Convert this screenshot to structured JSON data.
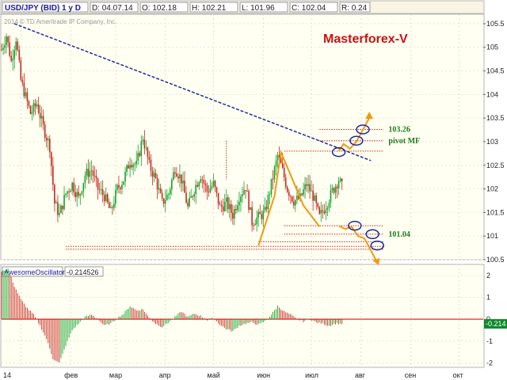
{
  "header": {
    "symbol": "USD/JPY (BID) 1 y D",
    "date": "D: 04.07.14",
    "open": "O: 102.18",
    "high": "H: 102.21",
    "low": "L: 101.96",
    "close": "C: 102.04",
    "range": "R: 0.24"
  },
  "copyright": "2014 © TD Ameritrade IP Company, Inc.",
  "brand": "Masterforex-V",
  "indicator": {
    "name": "AwesomeOscillator",
    "value": "-0.214526",
    "zero": "0"
  },
  "annotations": {
    "target_up": "103.26",
    "pivot": "pivot MF",
    "target_down": "101.04"
  },
  "colors": {
    "background": "#fffff0",
    "header_bg": "#fffff0",
    "bull_candle": "#11a32a",
    "bear_candle": "#c8281e",
    "trendline": "#1b2c9c",
    "zigzag": "#f29a0e",
    "level_lines": "#c8281e",
    "brand_text": "#cc1111",
    "label_green": "#1f7a1f",
    "oscillator_zero": "#cc0000",
    "value_box": "#0d8a2c"
  },
  "chart_data": [
    {
      "type": "candlestick",
      "title": "USD/JPY (BID) 1 y D",
      "ylim": [
        100.5,
        105.7
      ],
      "y_ticks": [
        "105.5",
        "105",
        "104.5",
        "104",
        "103.5",
        "103",
        "102.5",
        "102",
        "101.5",
        "101",
        "100.5"
      ],
      "x_ticks": [
        "14",
        "фев",
        "мар",
        "апр",
        "май",
        "июн",
        "июл",
        "авг",
        "сен",
        "окт"
      ],
      "price_series": [
        [
          0,
          104.95
        ],
        [
          3,
          105.25
        ],
        [
          6,
          104.7
        ],
        [
          9,
          105.2
        ],
        [
          12,
          104.3
        ],
        [
          15,
          103.95
        ],
        [
          18,
          103.6
        ],
        [
          22,
          103.8
        ],
        [
          26,
          103.3
        ],
        [
          30,
          102.9
        ],
        [
          33,
          101.7
        ],
        [
          36,
          101.45
        ],
        [
          40,
          101.9
        ],
        [
          44,
          102.1
        ],
        [
          48,
          101.8
        ],
        [
          52,
          102.3
        ],
        [
          56,
          102.4
        ],
        [
          60,
          102.0
        ],
        [
          64,
          101.85
        ],
        [
          68,
          101.5
        ],
        [
          72,
          102.0
        ],
        [
          76,
          102.2
        ],
        [
          80,
          102.6
        ],
        [
          84,
          102.5
        ],
        [
          88,
          103.1
        ],
        [
          92,
          102.5
        ],
        [
          96,
          102.2
        ],
        [
          100,
          101.7
        ],
        [
          104,
          101.9
        ],
        [
          108,
          102.45
        ],
        [
          112,
          102.2
        ],
        [
          116,
          101.6
        ],
        [
          120,
          102.0
        ],
        [
          124,
          102.3
        ],
        [
          128,
          101.95
        ],
        [
          132,
          102.1
        ],
        [
          136,
          101.6
        ],
        [
          140,
          101.7
        ],
        [
          144,
          101.45
        ],
        [
          148,
          101.85
        ],
        [
          152,
          102.05
        ],
        [
          156,
          101.3
        ],
        [
          160,
          101.4
        ],
        [
          164,
          101.5
        ],
        [
          168,
          102.1
        ],
        [
          172,
          102.7
        ],
        [
          174,
          102.5
        ],
        [
          178,
          102.0
        ],
        [
          182,
          101.75
        ],
        [
          186,
          101.8
        ],
        [
          190,
          102.1
        ],
        [
          194,
          101.85
        ],
        [
          198,
          101.4
        ],
        [
          202,
          101.65
        ],
        [
          206,
          101.95
        ],
        [
          210,
          102.2
        ],
        [
          212,
          102.04
        ]
      ],
      "levels": [
        {
          "label": "103.26",
          "value": 103.26
        },
        {
          "label": "pivot MF",
          "value": 103.02
        },
        {
          "value": 102.8
        },
        {
          "value": 101.22
        },
        {
          "label": "101.04",
          "value": 101.04
        },
        {
          "value": 100.88
        },
        {
          "value": 100.78
        },
        {
          "value": 100.72
        }
      ],
      "trendline": [
        [
          0,
          105.5
        ],
        [
          230,
          102.6
        ]
      ],
      "zigzag_actual": [
        [
          160,
          100.8
        ],
        [
          170,
          101.85
        ],
        [
          174,
          102.78
        ],
        [
          188,
          101.65
        ],
        [
          198,
          101.2
        ]
      ],
      "projection_up": [
        [
          210,
          102.8
        ],
        [
          213,
          102.95
        ],
        [
          217,
          102.85
        ],
        [
          221,
          103.0
        ],
        [
          225,
          103.25
        ],
        [
          229,
          103.5
        ]
      ],
      "projection_down": [
        [
          210,
          101.22
        ],
        [
          214,
          101.15
        ],
        [
          218,
          101.2
        ],
        [
          222,
          101.0
        ],
        [
          226,
          100.95
        ],
        [
          230,
          100.7
        ],
        [
          233,
          100.5
        ]
      ],
      "markers": [
        [
          210,
          102.78
        ],
        [
          220,
          101.22
        ],
        [
          221,
          103.02
        ],
        [
          225,
          103.26
        ],
        [
          231,
          101.04
        ],
        [
          234,
          100.8
        ]
      ]
    },
    {
      "type": "bar",
      "title": "AwesomeOscillator",
      "ylim": [
        -2.2,
        2.5
      ],
      "y_ticks": [
        "2",
        "1",
        "0",
        "-1",
        "-2"
      ],
      "zero_line": 0,
      "last_value": -0.214526,
      "series": [
        [
          0,
          2.2
        ],
        [
          4,
          2.3
        ],
        [
          8,
          1.5
        ],
        [
          12,
          0.9
        ],
        [
          16,
          0.5
        ],
        [
          20,
          0.2
        ],
        [
          24,
          -0.3
        ],
        [
          28,
          -0.9
        ],
        [
          32,
          -1.8
        ],
        [
          36,
          -2.0
        ],
        [
          40,
          -1.2
        ],
        [
          44,
          -0.5
        ],
        [
          48,
          -0.2
        ],
        [
          52,
          0.1
        ],
        [
          56,
          0.2
        ],
        [
          60,
          0.0
        ],
        [
          64,
          -0.3
        ],
        [
          68,
          -0.2
        ],
        [
          72,
          0.05
        ],
        [
          76,
          0.25
        ],
        [
          80,
          0.6
        ],
        [
          84,
          0.4
        ],
        [
          88,
          0.45
        ],
        [
          92,
          0.05
        ],
        [
          96,
          -0.2
        ],
        [
          100,
          -0.35
        ],
        [
          104,
          -0.15
        ],
        [
          108,
          0.1
        ],
        [
          112,
          0.35
        ],
        [
          116,
          0.1
        ],
        [
          120,
          0.25
        ],
        [
          124,
          0.15
        ],
        [
          128,
          -0.05
        ],
        [
          132,
          0.05
        ],
        [
          136,
          -0.25
        ],
        [
          140,
          -0.45
        ],
        [
          144,
          -0.55
        ],
        [
          148,
          -0.3
        ],
        [
          152,
          -0.2
        ],
        [
          156,
          -0.15
        ],
        [
          160,
          -0.25
        ],
        [
          164,
          -0.1
        ],
        [
          168,
          0.2
        ],
        [
          172,
          0.6
        ],
        [
          176,
          0.35
        ],
        [
          180,
          0.2
        ],
        [
          184,
          0.0
        ],
        [
          188,
          -0.1
        ],
        [
          192,
          0.0
        ],
        [
          196,
          -0.15
        ],
        [
          200,
          -0.2
        ],
        [
          204,
          -0.3
        ],
        [
          208,
          -0.2
        ],
        [
          212,
          -0.21
        ]
      ]
    }
  ]
}
